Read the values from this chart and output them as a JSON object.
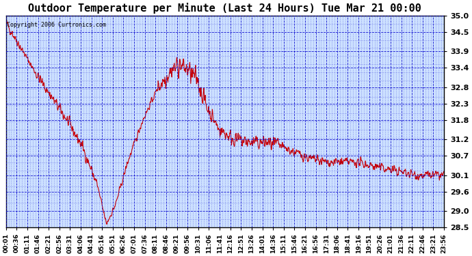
{
  "title": "Outdoor Temperature per Minute (Last 24 Hours) Tue Mar 21 00:00",
  "copyright": "Copyright 2006 Curtronics.com",
  "ymin": 28.5,
  "ymax": 35.0,
  "yticks": [
    28.5,
    29.0,
    29.6,
    30.1,
    30.7,
    31.2,
    31.8,
    32.3,
    32.8,
    33.4,
    33.9,
    34.5,
    35.0
  ],
  "background_color": "#ffffff",
  "plot_bg_color": "#cce0ff",
  "grid_color": "#0000cc",
  "line_color": "#cc0000",
  "x_labels": [
    "00:01",
    "00:36",
    "01:11",
    "01:46",
    "02:21",
    "02:56",
    "03:31",
    "04:06",
    "04:41",
    "05:16",
    "05:51",
    "06:26",
    "07:01",
    "07:36",
    "08:11",
    "08:46",
    "09:21",
    "09:56",
    "10:31",
    "11:06",
    "11:41",
    "12:16",
    "12:51",
    "13:26",
    "14:01",
    "14:36",
    "15:11",
    "15:46",
    "16:21",
    "16:56",
    "17:31",
    "18:06",
    "18:41",
    "19:16",
    "19:51",
    "20:26",
    "21:01",
    "21:36",
    "22:11",
    "22:46",
    "23:21",
    "23:56"
  ],
  "n_points": 1440
}
